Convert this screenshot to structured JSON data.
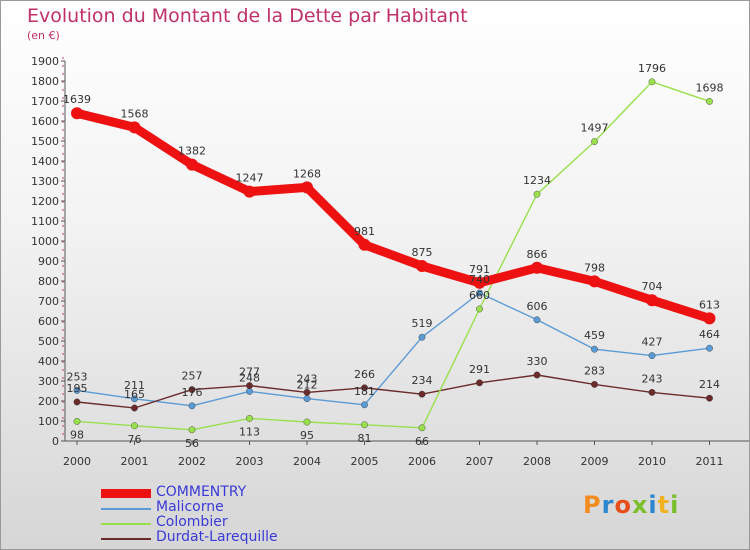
{
  "title": "Evolution du Montant de la Dette par Habitant",
  "subtitle": "(en €)",
  "logo": "Proxiti",
  "chart_data": {
    "type": "line",
    "title": "Evolution du Montant de la Dette par Habitant",
    "ylabel": "(en €)",
    "xlabel": "",
    "x": [
      "2000",
      "2001",
      "2002",
      "2003",
      "2004",
      "2005",
      "2006",
      "2007",
      "2008",
      "2009",
      "2010",
      "2011"
    ],
    "ylim": [
      0,
      1900
    ],
    "yticks": [
      0,
      100,
      200,
      300,
      400,
      500,
      600,
      700,
      800,
      900,
      1000,
      1100,
      1200,
      1300,
      1400,
      1500,
      1600,
      1700,
      1800,
      1900
    ],
    "grid": false,
    "legend": "bottom-left",
    "series": [
      {
        "name": "COMMENTRY",
        "color": "#ee1111",
        "values": [
          1639,
          1568,
          1382,
          1247,
          1268,
          981,
          875,
          791,
          866,
          798,
          704,
          613
        ]
      },
      {
        "name": "Malicorne",
        "color": "#5b9bd5",
        "values": [
          253,
          211,
          176,
          248,
          212,
          181,
          519,
          740,
          606,
          459,
          427,
          464
        ]
      },
      {
        "name": "Colombier",
        "color": "#99e04c",
        "values": [
          98,
          76,
          56,
          113,
          95,
          81,
          66,
          660,
          1234,
          1497,
          1796,
          1698
        ]
      },
      {
        "name": "Durdat-Larequille",
        "color": "#6b2b2b",
        "values": [
          195,
          165,
          257,
          277,
          243,
          266,
          234,
          291,
          330,
          283,
          243,
          214
        ]
      }
    ]
  }
}
